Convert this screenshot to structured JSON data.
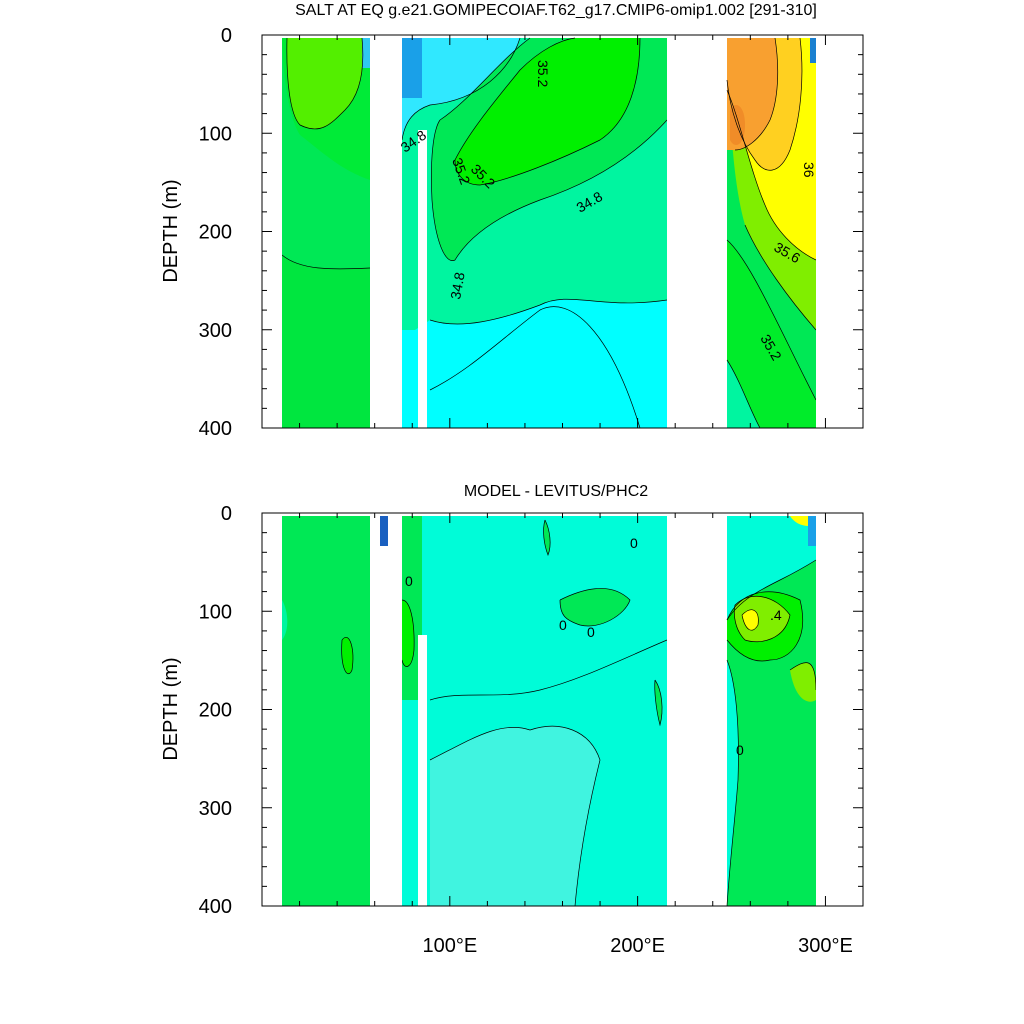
{
  "chart_data": [
    {
      "type": "contour",
      "title": "SALT AT EQ g.e21.GOMIPECOIAF.T62_g17.CMIP6-omip1.002 [291-310]",
      "ylabel": "DEPTH (m)",
      "ylim": [
        0,
        400
      ],
      "y_reversed": true,
      "y_ticks": [
        "0",
        "100",
        "200",
        "300",
        "400"
      ],
      "xlim": [
        0,
        320
      ],
      "x_ticks": [],
      "ocean_segments_lon": [
        [
          10,
          60
        ],
        [
          78,
          220
        ],
        [
          252,
          300
        ]
      ],
      "land_gaps_lon": [
        [
          60,
          78
        ],
        [
          220,
          252
        ]
      ],
      "contour_labels": [
        "35.2",
        "34.8",
        "35.2",
        "35.2",
        "34.8",
        "36",
        "35.6",
        "34.8",
        "35.2"
      ],
      "colors": {
        "fresh_cyan": "#00ffff",
        "cyan_light": "#30e8ff",
        "blue": "#1aa0e8",
        "sea_green": "#00f5a0",
        "green": "#00e855",
        "bright_green": "#00f000",
        "yellow_green": "#80ee00",
        "yellow": "#ffff00",
        "gold": "#ffd020",
        "orange": "#f8a030",
        "dark_orange": "#f08c28"
      }
    },
    {
      "type": "contour",
      "title": "MODEL - LEVITUS/PHC2",
      "ylabel": "DEPTH (m)",
      "ylim": [
        0,
        400
      ],
      "y_reversed": true,
      "y_ticks": [
        "0",
        "100",
        "200",
        "300",
        "400"
      ],
      "xlim": [
        0,
        320
      ],
      "x_ticks": [
        "100°E",
        "200°E",
        "300°E"
      ],
      "x_tick_values": [
        100,
        200,
        300
      ],
      "ocean_segments_lon": [
        [
          10,
          60
        ],
        [
          78,
          220
        ],
        [
          252,
          300
        ]
      ],
      "land_gaps_lon": [
        [
          60,
          78
        ],
        [
          220,
          252
        ]
      ],
      "contour_labels": [
        "0",
        "0",
        "0",
        "0",
        ".4",
        "0"
      ],
      "colors": {
        "aqua": "#00fcd8",
        "aqua_light": "#40f4e0",
        "green": "#00e855",
        "bright_green": "#00f000",
        "yellow_green": "#80ee00",
        "yellow": "#ffff00",
        "blue": "#1aa0e8"
      }
    }
  ]
}
